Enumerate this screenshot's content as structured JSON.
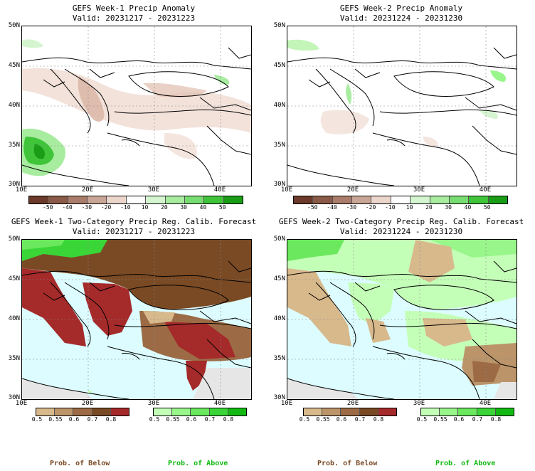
{
  "panels": {
    "p1": {
      "title": "GEFS Week-1 Precip Anomaly",
      "valid": "Valid: 20231217 - 20231223"
    },
    "p2": {
      "title": "GEFS Week-2 Precip Anomaly",
      "valid": "Valid: 20231224 - 20231230"
    },
    "p3": {
      "title": "GEFS Week-1 Two-Category Precip Reg. Calib. Forecast",
      "valid": "Valid: 20231217 - 20231223"
    },
    "p4": {
      "title": "GEFS Week-2 Two-Category Precip Reg. Calib. Forecast",
      "valid": "Valid: 20231224 - 20231230"
    }
  },
  "axes": {
    "lat": [
      "50N",
      "45N",
      "40N",
      "35N",
      "30N"
    ],
    "lon": [
      "10E",
      "20E",
      "30E",
      "40E"
    ]
  },
  "anomaly_colorbar": {
    "labels": [
      "-50",
      "-40",
      "-30",
      "-20",
      "-10",
      "10",
      "20",
      "30",
      "40",
      "50"
    ],
    "colors": [
      "#6b3a2a",
      "#8a5a48",
      "#a97c6b",
      "#c9a596",
      "#ecd6cb",
      "#ffffff",
      "#d4f5d0",
      "#a8eca0",
      "#78dd70",
      "#3fc43a",
      "#1a9c17"
    ]
  },
  "prob_colorbar": {
    "labels": [
      "0.5",
      "0.55",
      "0.6",
      "0.7",
      "0.8"
    ],
    "below_colors": [
      "#d8b98c",
      "#bb9469",
      "#9c6b45",
      "#7a4a24",
      "#a52a2a"
    ],
    "above_colors": [
      "#c4ffb8",
      "#98f68a",
      "#6be85d",
      "#3ad638",
      "#13b913"
    ]
  },
  "footer": {
    "below": "Prob. of Below",
    "above": "Prob. of Above"
  }
}
